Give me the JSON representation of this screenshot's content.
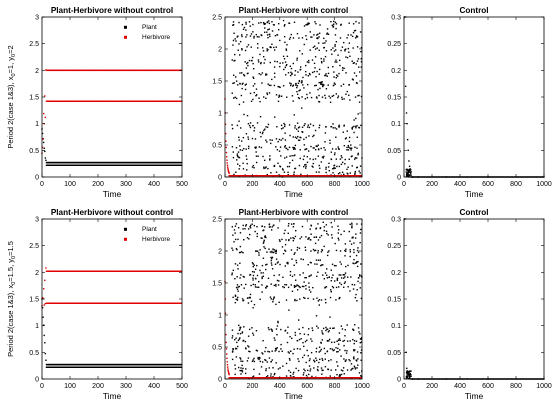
{
  "rows": [
    {
      "ylabel_main": "Period 2(case 1&3), x",
      "ylabel_tail": "=1, y",
      "ylabel_end": "=2",
      "ylabel_sub": "0"
    },
    {
      "ylabel_main": "Period 2(case 1&3), x",
      "ylabel_tail": "=1.5, y",
      "ylabel_end": "=1.5",
      "ylabel_sub": "0"
    }
  ],
  "legend": {
    "plant": "Plant",
    "herbivore": "Herbivore"
  },
  "colors": {
    "plant": "#000000",
    "herbivore": "#e00000"
  },
  "chart_data": [
    {
      "type": "scatter",
      "title": "Plant-Herbivore without control",
      "xlabel": "Time",
      "xlim": [
        0,
        500
      ],
      "ylim": [
        0,
        3
      ],
      "xticks": [
        0,
        100,
        200,
        300,
        400,
        500
      ],
      "yticks": [
        0,
        0.5,
        1,
        1.5,
        2,
        2.5,
        3
      ],
      "legend": [
        "Plant",
        "Herbivore"
      ],
      "legend_position": "top-right",
      "series": [
        {
          "name": "Plant",
          "values_cycle": [
            0.22,
            0.27
          ],
          "transient_start": 0.9
        },
        {
          "name": "Herbivore",
          "values_cycle": [
            1.42,
            2.0
          ],
          "transient_start": 0.4
        }
      ]
    },
    {
      "type": "scatter",
      "title": "Plant-Herbivore with control",
      "xlabel": "Time",
      "xlim": [
        0,
        1000
      ],
      "ylim": [
        0,
        2.5
      ],
      "xticks": [
        0,
        200,
        400,
        600,
        800,
        1000
      ],
      "yticks": [
        0,
        0.5,
        1,
        1.5,
        2,
        2.5
      ],
      "series": [
        {
          "name": "Plant",
          "range": [
            0,
            2.45
          ]
        },
        {
          "name": "Herbivore",
          "level": 0.02,
          "transient_start": 1.2
        }
      ]
    },
    {
      "type": "scatter",
      "title": "Control",
      "xlabel": "Time",
      "xlim": [
        0,
        1000
      ],
      "ylim": [
        0,
        0.3
      ],
      "xticks": [
        0,
        200,
        400,
        600,
        800,
        1000
      ],
      "yticks": [
        0,
        0.05,
        0.1,
        0.15,
        0.2,
        0.25,
        0.3
      ],
      "series": [
        {
          "name": "Control",
          "values": [
            [
              2,
              0.3
            ],
            [
              8,
              0.3
            ],
            [
              12,
              0.17
            ],
            [
              18,
              0.12
            ],
            [
              22,
              0.1
            ],
            [
              26,
              0.07
            ],
            [
              30,
              0.05
            ],
            [
              35,
              0.03
            ],
            [
              40,
              0.02
            ],
            [
              45,
              0.015
            ],
            [
              50,
              0.01
            ],
            [
              60,
              0.0
            ],
            [
              100,
              0.0
            ],
            [
              300,
              0.0
            ],
            [
              600,
              0.0
            ],
            [
              1000,
              0.0
            ]
          ]
        }
      ]
    },
    {
      "type": "scatter",
      "title": "Plant-Herbivore without control",
      "xlabel": "Time",
      "xlim": [
        0,
        500
      ],
      "ylim": [
        0,
        3
      ],
      "xticks": [
        0,
        100,
        200,
        300,
        400,
        500
      ],
      "yticks": [
        0,
        0.5,
        1,
        1.5,
        2,
        2.5,
        3
      ],
      "legend": [
        "Plant",
        "Herbivore"
      ],
      "legend_position": "top-right",
      "series": [
        {
          "name": "Plant",
          "values_cycle": [
            0.22,
            0.27
          ],
          "transient_start": 1.5
        },
        {
          "name": "Herbivore",
          "values_cycle": [
            1.42,
            2.02
          ],
          "transient_start": 1.5
        }
      ]
    },
    {
      "type": "scatter",
      "title": "Plant-Herbivore with control",
      "xlabel": "Time",
      "xlim": [
        0,
        1000
      ],
      "ylim": [
        0,
        2.5
      ],
      "xticks": [
        0,
        200,
        400,
        600,
        800,
        1000
      ],
      "yticks": [
        0,
        0.5,
        1,
        1.5,
        2,
        2.5
      ],
      "series": [
        {
          "name": "Plant",
          "range": [
            0,
            2.45
          ]
        },
        {
          "name": "Herbivore",
          "level": 0.02,
          "transient_start": 1.5
        }
      ]
    },
    {
      "type": "scatter",
      "title": "Control",
      "xlabel": "Time",
      "xlim": [
        0,
        1000
      ],
      "ylim": [
        0,
        0.3
      ],
      "xticks": [
        0,
        200,
        400,
        600,
        800,
        1000
      ],
      "yticks": [
        0,
        0.05,
        0.1,
        0.15,
        0.2,
        0.25,
        0.3
      ],
      "series": [
        {
          "name": "Control",
          "values": [
            [
              2,
              0.3
            ],
            [
              8,
              0.3
            ],
            [
              15,
              0.05
            ],
            [
              20,
              0.02
            ],
            [
              25,
              0.015
            ],
            [
              30,
              0.01
            ],
            [
              35,
              0.012
            ],
            [
              40,
              0.008
            ],
            [
              45,
              0.01
            ],
            [
              50,
              0.005
            ],
            [
              60,
              0.0
            ],
            [
              100,
              0.0
            ],
            [
              300,
              0.0
            ],
            [
              600,
              0.0
            ],
            [
              1000,
              0.0
            ]
          ]
        }
      ]
    }
  ]
}
